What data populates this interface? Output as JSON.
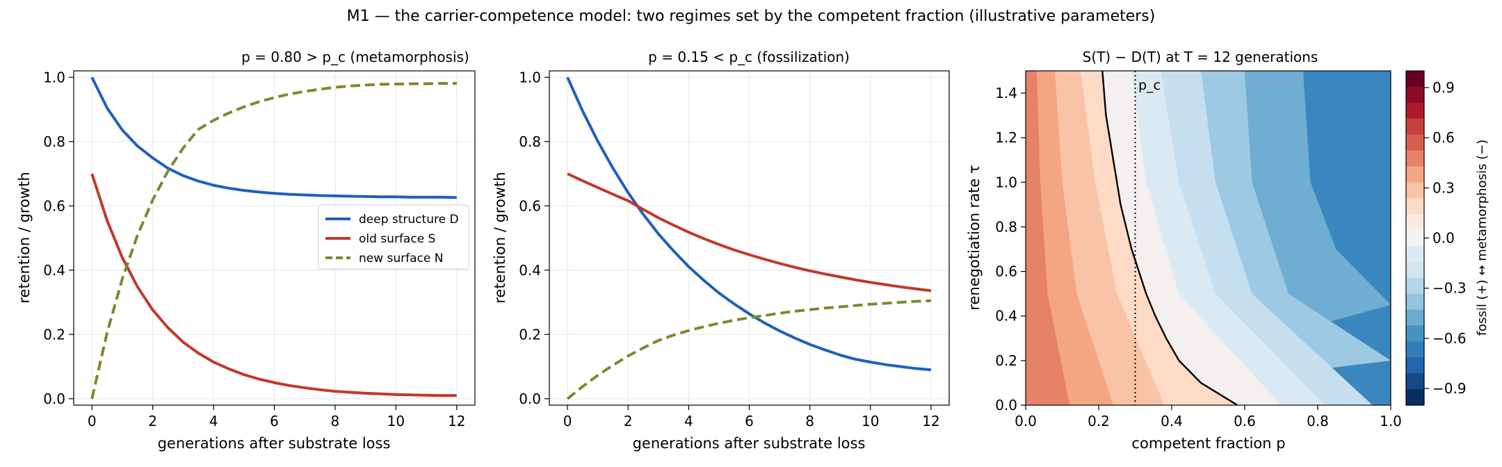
{
  "suptitle": "M1 — the carrier-competence model: two regimes set by the competent fraction (illustrative parameters)",
  "colors": {
    "deep_structure": "#1f5fbf",
    "old_surface": "#c0392b",
    "new_surface": "#7a8a2e",
    "grid": "#e6e6e6",
    "contour_line": "#000000"
  },
  "chart_data": [
    {
      "type": "line",
      "title": "p = 0.80 > p_c  (metamorphosis)",
      "xlabel": "generations after substrate loss",
      "ylabel": "retention / growth",
      "xlim": [
        -0.6,
        12.6
      ],
      "ylim": [
        -0.02,
        1.02
      ],
      "xticks": [
        0,
        2,
        4,
        6,
        8,
        10,
        12
      ],
      "yticks": [
        0.0,
        0.2,
        0.4,
        0.6,
        0.8,
        1.0
      ],
      "grid": true,
      "legend": "center-right",
      "x": [
        0,
        0.5,
        1,
        1.5,
        2,
        2.5,
        3,
        3.5,
        4,
        4.5,
        5,
        5.5,
        6,
        6.5,
        7,
        7.5,
        8,
        8.5,
        9,
        9.5,
        10,
        10.5,
        11,
        11.5,
        12
      ],
      "series": [
        {
          "name": "deep structure D",
          "style": "solid",
          "color": "#1f5fbf",
          "values": [
            1.0,
            0.904,
            0.836,
            0.786,
            0.749,
            0.717,
            0.694,
            0.677,
            0.664,
            0.655,
            0.648,
            0.643,
            0.639,
            0.636,
            0.634,
            0.632,
            0.631,
            0.63,
            0.629,
            0.628,
            0.628,
            0.627,
            0.627,
            0.627,
            0.626
          ]
        },
        {
          "name": "old surface S",
          "style": "solid",
          "color": "#c0392b",
          "values": [
            0.7,
            0.554,
            0.439,
            0.348,
            0.276,
            0.221,
            0.176,
            0.142,
            0.114,
            0.093,
            0.075,
            0.061,
            0.05,
            0.041,
            0.034,
            0.028,
            0.023,
            0.02,
            0.017,
            0.015,
            0.013,
            0.012,
            0.011,
            0.01,
            0.01
          ]
        },
        {
          "name": "new surface N",
          "style": "dashed",
          "color": "#7a8a2e",
          "values": [
            0.0,
            0.206,
            0.373,
            0.509,
            0.619,
            0.708,
            0.78,
            0.838,
            0.866,
            0.889,
            0.908,
            0.924,
            0.937,
            0.948,
            0.956,
            0.963,
            0.969,
            0.973,
            0.976,
            0.978,
            0.979,
            0.98,
            0.98,
            0.981,
            0.981
          ]
        }
      ]
    },
    {
      "type": "line",
      "title": "p = 0.15 < p_c  (fossilization)",
      "xlabel": "generations after substrate loss",
      "ylabel": "retention / growth",
      "xlim": [
        -0.6,
        12.6
      ],
      "ylim": [
        -0.02,
        1.02
      ],
      "xticks": [
        0,
        2,
        4,
        6,
        8,
        10,
        12
      ],
      "yticks": [
        0.0,
        0.2,
        0.4,
        0.6,
        0.8,
        1.0
      ],
      "grid": true,
      "x": [
        0,
        0.5,
        1,
        1.5,
        2,
        2.5,
        3,
        3.5,
        4,
        4.5,
        5,
        5.5,
        6,
        6.5,
        7,
        7.5,
        8,
        8.5,
        9,
        9.5,
        10,
        10.5,
        11,
        11.5,
        12
      ],
      "series": [
        {
          "name": "deep structure D",
          "style": "solid",
          "color": "#1f5fbf",
          "values": [
            1.0,
            0.895,
            0.801,
            0.717,
            0.641,
            0.574,
            0.513,
            0.46,
            0.411,
            0.368,
            0.329,
            0.295,
            0.264,
            0.236,
            0.211,
            0.189,
            0.169,
            0.152,
            0.136,
            0.123,
            0.114,
            0.106,
            0.1,
            0.094,
            0.09
          ]
        },
        {
          "name": "old surface S",
          "style": "solid",
          "color": "#c0392b",
          "values": [
            0.7,
            0.678,
            0.657,
            0.636,
            0.616,
            0.589,
            0.563,
            0.54,
            0.518,
            0.498,
            0.48,
            0.463,
            0.448,
            0.434,
            0.421,
            0.409,
            0.398,
            0.388,
            0.379,
            0.37,
            0.362,
            0.355,
            0.348,
            0.342,
            0.336
          ]
        },
        {
          "name": "new surface N",
          "style": "dashed",
          "color": "#7a8a2e",
          "values": [
            0.0,
            0.038,
            0.073,
            0.104,
            0.133,
            0.158,
            0.181,
            0.198,
            0.212,
            0.224,
            0.235,
            0.244,
            0.252,
            0.259,
            0.266,
            0.272,
            0.277,
            0.282,
            0.286,
            0.29,
            0.294,
            0.297,
            0.3,
            0.303,
            0.305
          ]
        }
      ]
    },
    {
      "type": "heatmap",
      "title": "S(T) − D(T) at T = 12 generations",
      "xlabel": "competent fraction p",
      "ylabel": "renegotiation rate τ",
      "xlim": [
        0.0,
        1.0
      ],
      "ylim": [
        0.0,
        1.5
      ],
      "xticks": [
        0.0,
        0.2,
        0.4,
        0.6,
        0.8,
        1.0
      ],
      "yticks": [
        0.0,
        0.2,
        0.4,
        0.6,
        0.8,
        1.0,
        1.2,
        1.4
      ],
      "critical_line": {
        "label": "p_c",
        "p": 0.3
      },
      "zero_contour_p": [
        [
          0.0,
          0.58
        ],
        [
          0.1,
          0.48
        ],
        [
          0.2,
          0.42
        ],
        [
          0.3,
          0.385
        ],
        [
          0.4,
          0.355
        ],
        [
          0.5,
          0.33
        ],
        [
          0.6,
          0.31
        ],
        [
          0.7,
          0.29
        ],
        [
          0.8,
          0.275
        ],
        [
          0.9,
          0.26
        ],
        [
          1.0,
          0.25
        ],
        [
          1.1,
          0.24
        ],
        [
          1.2,
          0.23
        ],
        [
          1.3,
          0.22
        ],
        [
          1.4,
          0.215
        ],
        [
          1.5,
          0.21
        ]
      ],
      "filled_contour_boundaries_p": [
        {
          "level": 0.3,
          "p_at_tau": [
            [
              0.0,
              0.12
            ],
            [
              0.5,
              0.06
            ],
            [
              1.0,
              0.04
            ],
            [
              1.5,
              0.03
            ]
          ]
        },
        {
          "level": 0.2,
          "p_at_tau": [
            [
              0.0,
              0.24
            ],
            [
              0.5,
              0.14
            ],
            [
              1.0,
              0.1
            ],
            [
              1.5,
              0.08
            ]
          ]
        },
        {
          "level": 0.1,
          "p_at_tau": [
            [
              0.0,
              0.38
            ],
            [
              0.5,
              0.25
            ],
            [
              1.0,
              0.19
            ],
            [
              1.5,
              0.15
            ]
          ]
        },
        {
          "level": -0.1,
          "p_at_tau": [
            [
              0.0,
              0.7
            ],
            [
              0.5,
              0.42
            ],
            [
              1.0,
              0.33
            ],
            [
              1.5,
              0.29
            ]
          ]
        },
        {
          "level": -0.2,
          "p_at_tau": [
            [
              0.0,
              0.82
            ],
            [
              0.5,
              0.52
            ],
            [
              1.0,
              0.42
            ],
            [
              1.5,
              0.37
            ]
          ]
        },
        {
          "level": -0.3,
          "p_at_tau": [
            [
              0.0,
              0.95
            ],
            [
              0.5,
              0.62
            ],
            [
              1.0,
              0.52
            ],
            [
              1.5,
              0.48
            ]
          ]
        },
        {
          "level": -0.4,
          "p_at_tau": [
            [
              0.2,
              1.0
            ],
            [
              0.5,
              0.72
            ],
            [
              1.0,
              0.62
            ],
            [
              1.5,
              0.6
            ]
          ]
        },
        {
          "level": -0.5,
          "p_at_tau": [
            [
              0.45,
              1.0
            ],
            [
              0.7,
              0.85
            ],
            [
              1.0,
              0.78
            ],
            [
              1.5,
              0.76
            ]
          ]
        }
      ],
      "colorbar": {
        "label": "fossil (+)  ↔  metamorphosis (−)",
        "range": [
          -1.0,
          1.0
        ],
        "ticks": [
          0.9,
          0.6,
          0.3,
          0.0,
          -0.3,
          -0.6,
          -0.9
        ],
        "tick_labels": [
          "0.9",
          "0.6",
          "0.3",
          "0.0",
          "−0.3",
          "−0.6",
          "−0.9"
        ],
        "colors_top_to_bottom": [
          "#67001f",
          "#8b0a25",
          "#b2182b",
          "#c6413e",
          "#d6604d",
          "#e58267",
          "#f4a582",
          "#f8c3a6",
          "#fddbc7",
          "#faeae2",
          "#f0f2f4",
          "#dceaf2",
          "#d1e5f0",
          "#b4d6e8",
          "#92c5de",
          "#6aabd2",
          "#4393c3",
          "#337eb8",
          "#2166ac",
          "#114a8a",
          "#053061"
        ]
      }
    }
  ]
}
